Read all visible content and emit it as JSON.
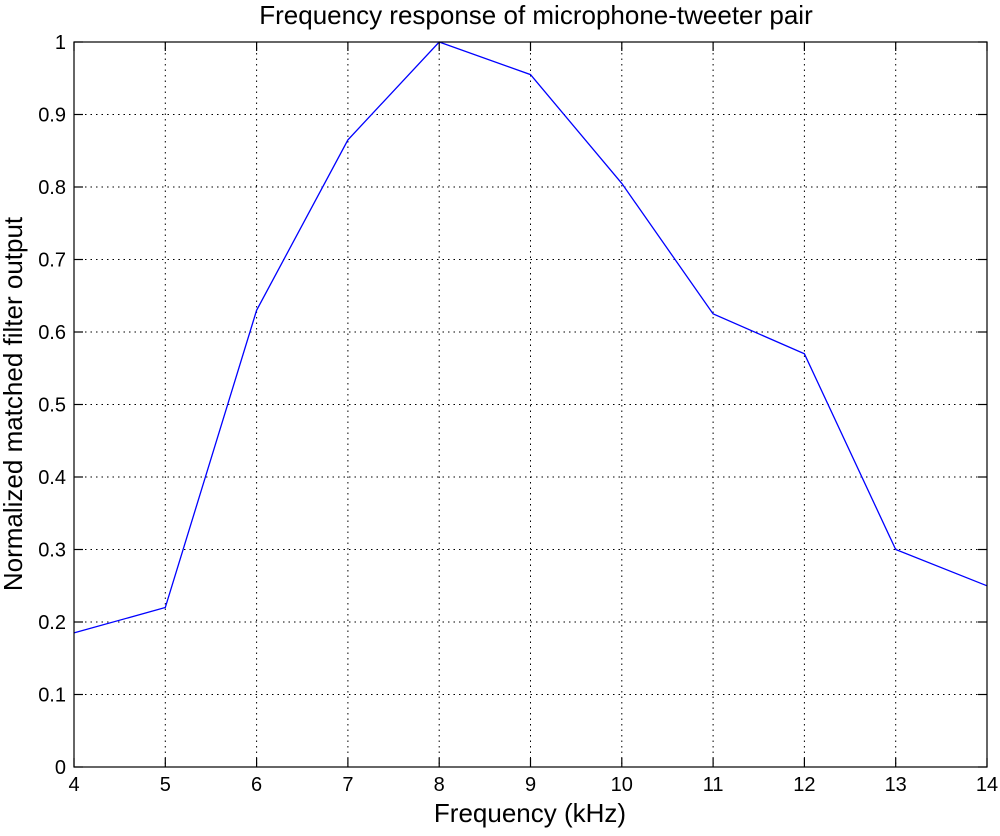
{
  "chart_data": {
    "type": "line",
    "title": "Frequency response of microphone-tweeter pair",
    "xlabel": "Frequency (kHz)",
    "ylabel": "Normalized matched filter output",
    "xlim": [
      4,
      14
    ],
    "ylim": [
      0,
      1
    ],
    "xticks": [
      4,
      5,
      6,
      7,
      8,
      9,
      10,
      11,
      12,
      13,
      14
    ],
    "yticks": [
      0,
      0.1,
      0.2,
      0.3,
      0.4,
      0.5,
      0.6,
      0.7,
      0.8,
      0.9,
      1
    ],
    "xtick_labels": [
      "4",
      "5",
      "6",
      "7",
      "8",
      "9",
      "10",
      "11",
      "12",
      "13",
      "14"
    ],
    "ytick_labels": [
      "0",
      "0.1",
      "0.2",
      "0.3",
      "0.4",
      "0.5",
      "0.6",
      "0.7",
      "0.8",
      "0.9",
      "1"
    ],
    "grid": true,
    "grid_style": "dotted",
    "series": [
      {
        "color": "#0000ff",
        "x": [
          4,
          5,
          6,
          7,
          8,
          9,
          10,
          11,
          12,
          13,
          14
        ],
        "y": [
          0.185,
          0.22,
          0.63,
          0.865,
          1.0,
          0.955,
          0.805,
          0.625,
          0.57,
          0.3,
          0.25
        ]
      }
    ]
  }
}
